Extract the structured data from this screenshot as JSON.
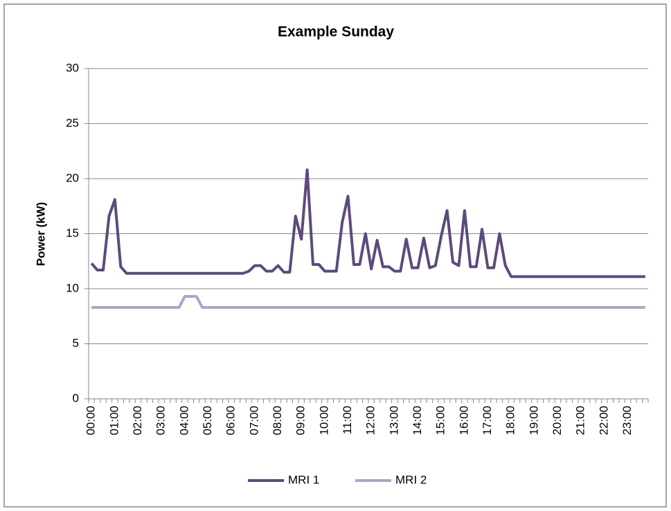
{
  "chart_data": {
    "type": "line",
    "title": "Example Sunday",
    "y_label": "Power (kW)",
    "categories": [
      "00:00",
      null,
      null,
      null,
      "01:00",
      null,
      null,
      null,
      "02:00",
      null,
      null,
      null,
      "03:00",
      null,
      null,
      null,
      "04:00",
      null,
      null,
      null,
      "05:00",
      null,
      null,
      null,
      "06:00",
      null,
      null,
      null,
      "07:00",
      null,
      null,
      null,
      "08:00",
      null,
      null,
      null,
      "09:00",
      null,
      null,
      null,
      "10:00",
      null,
      null,
      null,
      "11:00",
      null,
      null,
      null,
      "12:00",
      null,
      null,
      null,
      "13:00",
      null,
      null,
      null,
      "14:00",
      null,
      null,
      null,
      "15:00",
      null,
      null,
      null,
      "16:00",
      null,
      null,
      null,
      "17:00",
      null,
      null,
      null,
      "18:00",
      null,
      null,
      null,
      "19:00",
      null,
      null,
      null,
      "20:00",
      null,
      null,
      null,
      "21:00",
      null,
      null,
      null,
      "22:00",
      null,
      null,
      null,
      "23:00",
      null,
      null,
      null
    ],
    "series": [
      {
        "name": "MRI 1",
        "color": "#5d4a7c",
        "values": [
          12.3,
          11.7,
          11.7,
          16.6,
          18.1,
          12.0,
          11.4,
          11.4,
          11.4,
          11.4,
          11.4,
          11.4,
          11.4,
          11.4,
          11.4,
          11.4,
          11.4,
          11.4,
          11.4,
          11.4,
          11.4,
          11.4,
          11.4,
          11.4,
          11.4,
          11.4,
          11.4,
          11.6,
          12.1,
          12.1,
          11.6,
          11.6,
          12.1,
          11.5,
          11.5,
          16.6,
          14.5,
          20.8,
          12.2,
          12.2,
          11.6,
          11.6,
          11.6,
          16.0,
          18.4,
          12.2,
          12.2,
          15.0,
          11.8,
          14.4,
          12.0,
          12.0,
          11.6,
          11.6,
          14.5,
          11.9,
          11.9,
          14.6,
          11.9,
          12.1,
          14.8,
          17.1,
          12.4,
          12.1,
          17.1,
          12.0,
          12.0,
          15.4,
          11.9,
          11.9,
          15.0,
          12.1,
          11.1,
          11.1,
          11.1,
          11.1,
          11.1,
          11.1,
          11.1,
          11.1,
          11.1,
          11.1,
          11.1,
          11.1,
          11.1,
          11.1,
          11.1,
          11.1,
          11.1,
          11.1,
          11.1,
          11.1,
          11.1,
          11.1,
          11.1,
          11.1
        ]
      },
      {
        "name": "MRI 2",
        "color": "#b3a2c7",
        "values": [
          8.3,
          8.3,
          8.3,
          8.3,
          8.3,
          8.3,
          8.3,
          8.3,
          8.3,
          8.3,
          8.3,
          8.3,
          8.3,
          8.3,
          8.3,
          8.3,
          9.3,
          9.3,
          9.3,
          8.3,
          8.3,
          8.3,
          8.3,
          8.3,
          8.3,
          8.3,
          8.3,
          8.3,
          8.3,
          8.3,
          8.3,
          8.3,
          8.3,
          8.3,
          8.3,
          8.3,
          8.3,
          8.3,
          8.3,
          8.3,
          8.3,
          8.3,
          8.3,
          8.3,
          8.3,
          8.3,
          8.3,
          8.3,
          8.3,
          8.3,
          8.3,
          8.3,
          8.3,
          8.3,
          8.3,
          8.3,
          8.3,
          8.3,
          8.3,
          8.3,
          8.3,
          8.3,
          8.3,
          8.3,
          8.3,
          8.3,
          8.3,
          8.3,
          8.3,
          8.3,
          8.3,
          8.3,
          8.3,
          8.3,
          8.3,
          8.3,
          8.3,
          8.3,
          8.3,
          8.3,
          8.3,
          8.3,
          8.3,
          8.3,
          8.3,
          8.3,
          8.3,
          8.3,
          8.3,
          8.3,
          8.3,
          8.3,
          8.3,
          8.3,
          8.3,
          8.3
        ]
      }
    ],
    "ylim": [
      0,
      30
    ],
    "yticks": [
      0,
      5,
      10,
      15,
      20,
      25,
      30
    ],
    "grid": true,
    "legend": "bottom"
  }
}
